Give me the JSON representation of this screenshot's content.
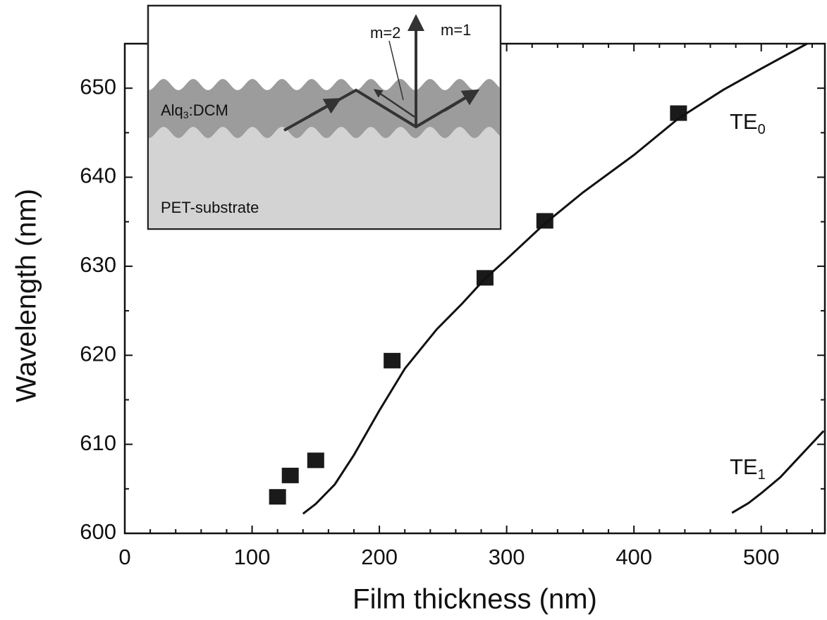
{
  "chart_data": {
    "type": "scatter",
    "xlabel": "Film thickness (nm)",
    "ylabel": "Wavelength (nm)",
    "xlim": [
      0,
      550
    ],
    "ylim": [
      600,
      655
    ],
    "xticks": [
      0,
      100,
      200,
      300,
      400,
      500
    ],
    "yticks": [
      600,
      610,
      620,
      630,
      640,
      650
    ],
    "series": [
      {
        "type": "scatter",
        "color": "#1a1a1a",
        "x": [
          120,
          130,
          150,
          210,
          283,
          330,
          435
        ],
        "values": [
          604.1,
          606.5,
          608.2,
          619.4,
          628.7,
          635.1,
          647.2
        ]
      },
      {
        "type": "line",
        "color": "#111111",
        "x": [
          140,
          150,
          165,
          180,
          200,
          220,
          245,
          265,
          283,
          300,
          330,
          360,
          400,
          435,
          470,
          500,
          536
        ],
        "values": [
          602.2,
          603.3,
          605.5,
          608.8,
          613.8,
          618.5,
          622.9,
          625.8,
          628.6,
          630.8,
          634.8,
          638.3,
          642.5,
          646.6,
          649.8,
          652.2,
          655.0
        ]
      },
      {
        "type": "line",
        "color": "#111111",
        "x": [
          477,
          490,
          500,
          515,
          530,
          549
        ],
        "values": [
          602.3,
          603.4,
          604.5,
          606.3,
          608.6,
          611.5
        ]
      }
    ],
    "annotations": [
      {
        "text": "TE",
        "subscript": "0"
      },
      {
        "text": "TE",
        "subscript": "1"
      }
    ],
    "inset": {
      "labels": [
        "m=2",
        "m=1"
      ],
      "layer": {
        "text": "Alq",
        "subscript": "3",
        "suffix": ":DCM"
      },
      "substrate": "PET-substrate"
    }
  }
}
